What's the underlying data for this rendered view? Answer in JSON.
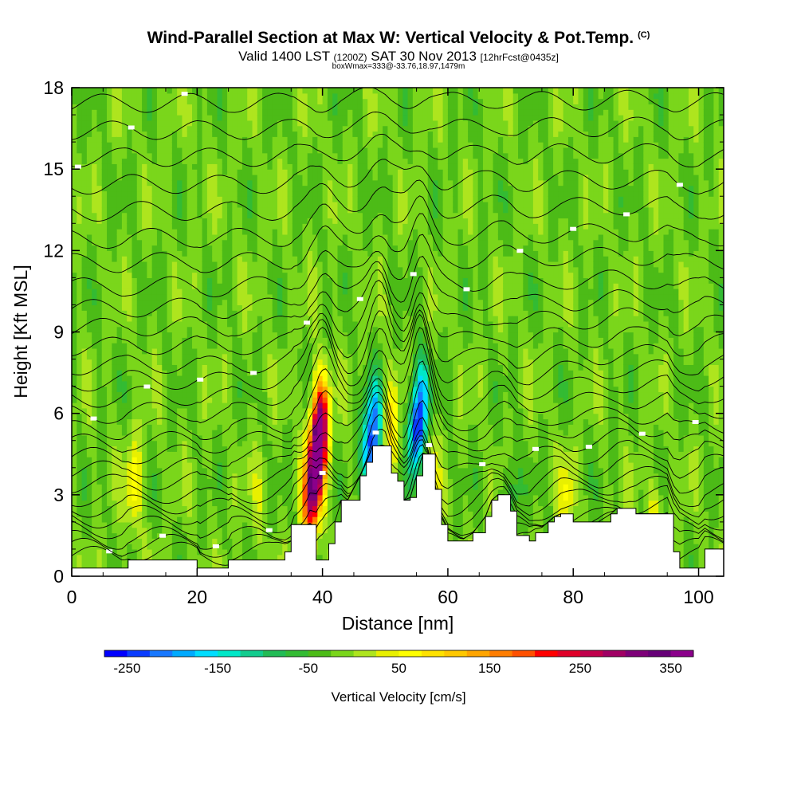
{
  "title": "Wind-Parallel Section at Max W: Vertical Velocity & Pot.Temp.",
  "title_mark": "(C)",
  "subtitle_main": "Valid 1400 LST",
  "subtitle_utc": "(1200Z)",
  "subtitle_date": "SAT 30 Nov 2013",
  "subtitle_fcst": "[12hrFcst@0435z]",
  "subtitle_box": "boxWmax=333@-33.76,18.97,1479m",
  "chart_data": {
    "type": "heatmap",
    "xlabel": "Distance [nm]",
    "ylabel": "Height [Kft MSL]",
    "xlim": [
      0,
      104
    ],
    "ylim": [
      0,
      18
    ],
    "x_ticks": [
      0,
      20,
      40,
      60,
      80,
      100
    ],
    "y_ticks": [
      0,
      3,
      6,
      9,
      12,
      15,
      18
    ],
    "colorbar": {
      "label": "Vertical Velocity [cm/s]",
      "tick_labels": [
        -250,
        -150,
        -50,
        50,
        150,
        250,
        350
      ],
      "range": [
        -275,
        375
      ],
      "colors": [
        "#0000ff",
        "#0a3cff",
        "#1878ff",
        "#00aaff",
        "#00ddff",
        "#00e8c8",
        "#12cc8e",
        "#22bb55",
        "#33bb33",
        "#4cbb17",
        "#7ad61b",
        "#aee51e",
        "#e8f000",
        "#ffff00",
        "#ffe200",
        "#ffc800",
        "#ffa500",
        "#ff7d00",
        "#ff5000",
        "#ff0000",
        "#e00028",
        "#c0004c",
        "#a00064",
        "#7d0078",
        "#660077",
        "#8b008b"
      ]
    },
    "background_value": -20,
    "terrain_kft": [
      [
        0,
        0.3
      ],
      [
        3,
        0.3
      ],
      [
        5,
        0.3
      ],
      [
        8,
        0.3
      ],
      [
        9,
        0.6
      ],
      [
        15,
        0.6
      ],
      [
        19,
        0.6
      ],
      [
        20,
        0.6
      ],
      [
        20,
        0.3
      ],
      [
        25,
        0.3
      ],
      [
        25,
        0.6
      ],
      [
        32,
        0.6
      ],
      [
        34,
        0.9
      ],
      [
        35,
        1.3
      ],
      [
        35,
        1.9
      ],
      [
        38,
        1.9
      ],
      [
        39,
        0.6
      ],
      [
        40,
        0.6
      ],
      [
        41,
        1.2
      ],
      [
        42,
        2.0
      ],
      [
        43,
        2.8
      ],
      [
        44,
        2.8
      ],
      [
        46,
        3.7
      ],
      [
        47,
        4.2
      ],
      [
        48,
        4.8
      ],
      [
        50,
        4.8
      ],
      [
        51,
        3.8
      ],
      [
        52,
        3.5
      ],
      [
        53,
        2.8
      ],
      [
        54,
        2.9
      ],
      [
        55,
        3.7
      ],
      [
        56,
        4.5
      ],
      [
        57,
        4.5
      ],
      [
        58,
        3.2
      ],
      [
        59,
        1.9
      ],
      [
        60,
        1.3
      ],
      [
        62,
        1.3
      ],
      [
        64,
        1.6
      ],
      [
        66,
        2.2
      ],
      [
        67,
        2.8
      ],
      [
        68,
        3.0
      ],
      [
        69,
        3.0
      ],
      [
        70,
        2.4
      ],
      [
        71,
        1.5
      ],
      [
        73,
        1.3
      ],
      [
        74,
        1.6
      ],
      [
        76,
        2.0
      ],
      [
        77,
        2.2
      ],
      [
        78,
        2.3
      ],
      [
        80,
        2.0
      ],
      [
        83,
        2.0
      ],
      [
        84,
        2.0
      ],
      [
        86,
        2.3
      ],
      [
        87,
        2.5
      ],
      [
        88,
        2.5
      ],
      [
        89,
        2.5
      ],
      [
        90,
        2.3
      ],
      [
        95,
        2.3
      ],
      [
        96,
        0.9
      ],
      [
        97,
        0.3
      ],
      [
        100,
        0.3
      ],
      [
        101,
        1.0
      ],
      [
        104,
        1.0
      ]
    ],
    "w_features": [
      {
        "x": 39.0,
        "z": 4.2,
        "w": 350
      },
      {
        "x": 39.8,
        "z": 5.8,
        "w": 280
      },
      {
        "x": 38.0,
        "z": 2.7,
        "w": 220
      },
      {
        "x": 10.0,
        "z": 3.4,
        "w": 90
      },
      {
        "x": 47.5,
        "z": 4.5,
        "w": -180
      },
      {
        "x": 48.5,
        "z": 5.8,
        "w": -130
      },
      {
        "x": 50.8,
        "z": 5.5,
        "w": 110
      },
      {
        "x": 55.0,
        "z": 5.2,
        "w": -210
      },
      {
        "x": 55.8,
        "z": 6.8,
        "w": -120
      },
      {
        "x": 57.0,
        "z": 3.5,
        "w": 90
      },
      {
        "x": 93.0,
        "z": 2.0,
        "w": 70
      },
      {
        "x": 79.0,
        "z": 3.0,
        "w": 60
      },
      {
        "x": 70.0,
        "z": 3.0,
        "w": -60
      },
      {
        "x": 30.0,
        "z": 3.0,
        "w": 35
      }
    ],
    "theta_contours_kft": [
      0.6,
      0.9,
      1.2,
      1.6,
      2.0,
      2.4,
      2.8,
      3.3,
      3.8,
      4.3,
      4.8,
      5.3,
      5.9,
      6.5,
      7.1,
      7.7,
      8.4,
      9.1,
      9.8,
      10.6,
      11.5,
      12.4,
      13.4,
      14.4,
      15.4,
      16.4,
      17.4
    ]
  }
}
